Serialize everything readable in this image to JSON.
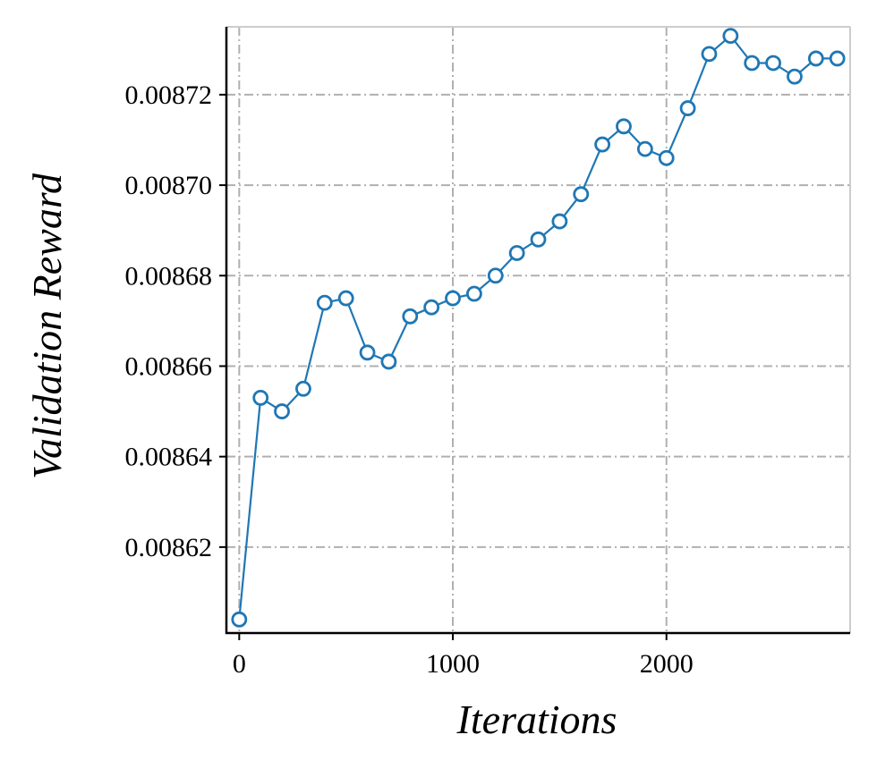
{
  "chart_data": {
    "type": "line",
    "title": "",
    "xlabel": "Iterations",
    "ylabel": "Validation Reward",
    "xlim": [
      -60,
      2860
    ],
    "ylim": [
      0.008601,
      0.008735
    ],
    "x_ticks": [
      0,
      1000,
      2000
    ],
    "x_tick_labels": [
      "0",
      "1000",
      "2000"
    ],
    "y_ticks": [
      0.00862,
      0.00864,
      0.00866,
      0.00868,
      0.0087,
      0.00872
    ],
    "y_tick_labels": [
      "0.00862",
      "0.00864",
      "0.00866",
      "0.00868",
      "0.00870",
      "0.00872"
    ],
    "grid": true,
    "legend": "none",
    "marker": "hollow-circle",
    "color": "#1f77b4",
    "x": [
      0,
      100,
      200,
      300,
      400,
      500,
      600,
      700,
      800,
      900,
      1000,
      1100,
      1200,
      1300,
      1400,
      1500,
      1600,
      1700,
      1800,
      1900,
      2000,
      2100,
      2200,
      2300,
      2400,
      2500,
      2600,
      2700,
      2800
    ],
    "values": [
      0.008604,
      0.008653,
      0.00865,
      0.008655,
      0.008674,
      0.008675,
      0.008663,
      0.008661,
      0.008671,
      0.008673,
      0.008675,
      0.008676,
      0.00868,
      0.008685,
      0.008688,
      0.008692,
      0.008698,
      0.008709,
      0.008713,
      0.008708,
      0.008706,
      0.008717,
      0.008729,
      0.008733,
      0.008727,
      0.008727,
      0.008724,
      0.008728,
      0.008728
    ]
  }
}
